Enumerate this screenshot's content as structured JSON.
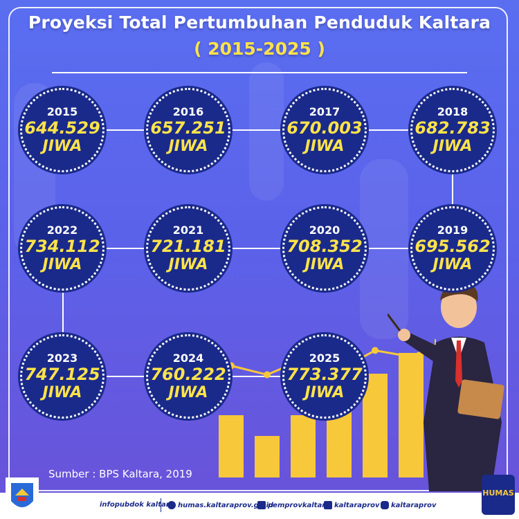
{
  "header": {
    "title": "Proyeksi Total Pertumbuhan Penduduk Kaltara",
    "subtitle": "( 2015-2025 )"
  },
  "circles": [
    {
      "year": "2015",
      "value": "644.529",
      "unit": "JIWA"
    },
    {
      "year": "2016",
      "value": "657.251",
      "unit": "JIWA"
    },
    {
      "year": "2017",
      "value": "670.003",
      "unit": "JIWA"
    },
    {
      "year": "2018",
      "value": "682.783",
      "unit": "JIWA"
    },
    {
      "year": "2019",
      "value": "695.562",
      "unit": "JIWA"
    },
    {
      "year": "2020",
      "value": "708.352",
      "unit": "JIWA"
    },
    {
      "year": "2021",
      "value": "721.181",
      "unit": "JIWA"
    },
    {
      "year": "2022",
      "value": "734.112",
      "unit": "JIWA"
    },
    {
      "year": "2023",
      "value": "747.125",
      "unit": "JIWA"
    },
    {
      "year": "2024",
      "value": "760.222",
      "unit": "JIWA"
    },
    {
      "year": "2025",
      "value": "773.377",
      "unit": "JIWA"
    }
  ],
  "illustration": {
    "bar_levels": [
      0.45,
      0.3,
      0.45,
      0.6,
      0.75,
      0.9,
      1.0
    ],
    "line_points": [
      0.55,
      0.45,
      0.62,
      0.5,
      0.72,
      0.65,
      0.85
    ]
  },
  "source": "Sumber : BPS Kaltara, 2019",
  "footer": {
    "items": [
      {
        "icon": "person-icon",
        "label": "infopubdok kaltara"
      },
      {
        "icon": "globe-icon",
        "label": "humas.kaltaraprov.go.id"
      },
      {
        "icon": "facebook-icon",
        "label": "pemprovkaltara"
      },
      {
        "icon": "twitter-icon",
        "label": "kaltaraprov"
      },
      {
        "icon": "instagram-icon",
        "label": "kaltaraprov"
      }
    ],
    "logo_right_text": "HUMAS"
  },
  "colors": {
    "accent": "#ffe34a",
    "circle": "#1a2a8a",
    "bar": "#f7c83a"
  }
}
